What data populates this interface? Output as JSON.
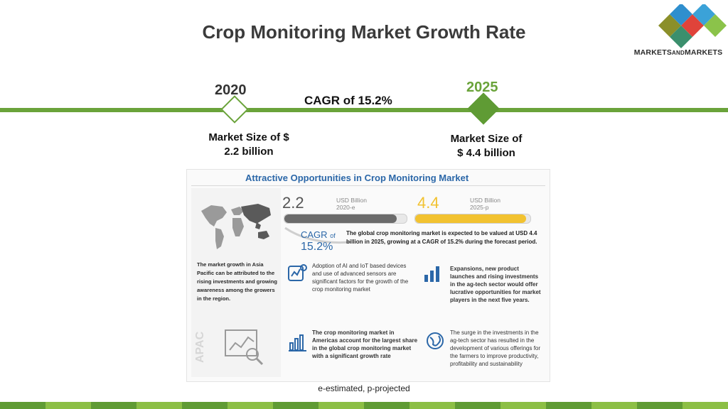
{
  "slide": {
    "title": "Crop Monitoring Market Growth Rate",
    "brand": {
      "part1": "MARKETS",
      "part2": "AND",
      "part3": "MARKETS",
      "colors": [
        "#e0433a",
        "#2f8fce",
        "#8bc34a",
        "#3b8f6d"
      ]
    },
    "timeline": {
      "year_start": "2020",
      "year_end": "2025",
      "cagr": "CAGR of 15.2%",
      "market_start_line1": "Market Size of $",
      "market_start_line2": "2.2 billion",
      "market_end_line1": "Market Size of",
      "market_end_line2": "$ 4.4 billion",
      "accent_color": "#6aa33a"
    },
    "footnote": "e-estimated, p-projected"
  },
  "infographic": {
    "title": "Attractive Opportunities in Crop Monitoring Market",
    "value_2020": "2.2",
    "unit_2020_line1": "USD Billion",
    "unit_2020_line2": "2020-e",
    "value_2025": "4.4",
    "unit_2025_line1": "USD Billion",
    "unit_2025_line2": "2025-p",
    "bar_2020_fill_percent": 92,
    "bar_2025_fill_percent": 96,
    "cagr_label": "CAGR",
    "cagr_of": "of",
    "cagr_value": "15.2%",
    "summary": "The global crop monitoring market is expected to be valued at USD 4.4 billion in 2025, growing at a CAGR of 15.2% during the forecast period.",
    "apac_label": "APAC",
    "apac_text": "The market growth in Asia Pacific can be attributed to the rising investments and growing awareness among the growers in the region.",
    "cells": [
      {
        "text": "Adoption of AI and IoT based devices and use of advanced sensors are significant factors for the growth of the crop monitoring market",
        "icon": "sensor-icon"
      },
      {
        "text": "Expansions, new product launches and rising investments in the ag-tech sector would offer lucrative opportunities for market players in the next five years.",
        "icon": "growth-icon"
      },
      {
        "text": "The crop monitoring market in Americas account for the largest share in the global crop monitoring market with a significant growth rate",
        "icon": "bar-chart-icon"
      },
      {
        "text": "The surge in the investments in the ag-tech sector has resulted in the development of various offerings for the farmers to improve productivity, profitability and sustainability",
        "icon": "globe-icon"
      }
    ]
  }
}
